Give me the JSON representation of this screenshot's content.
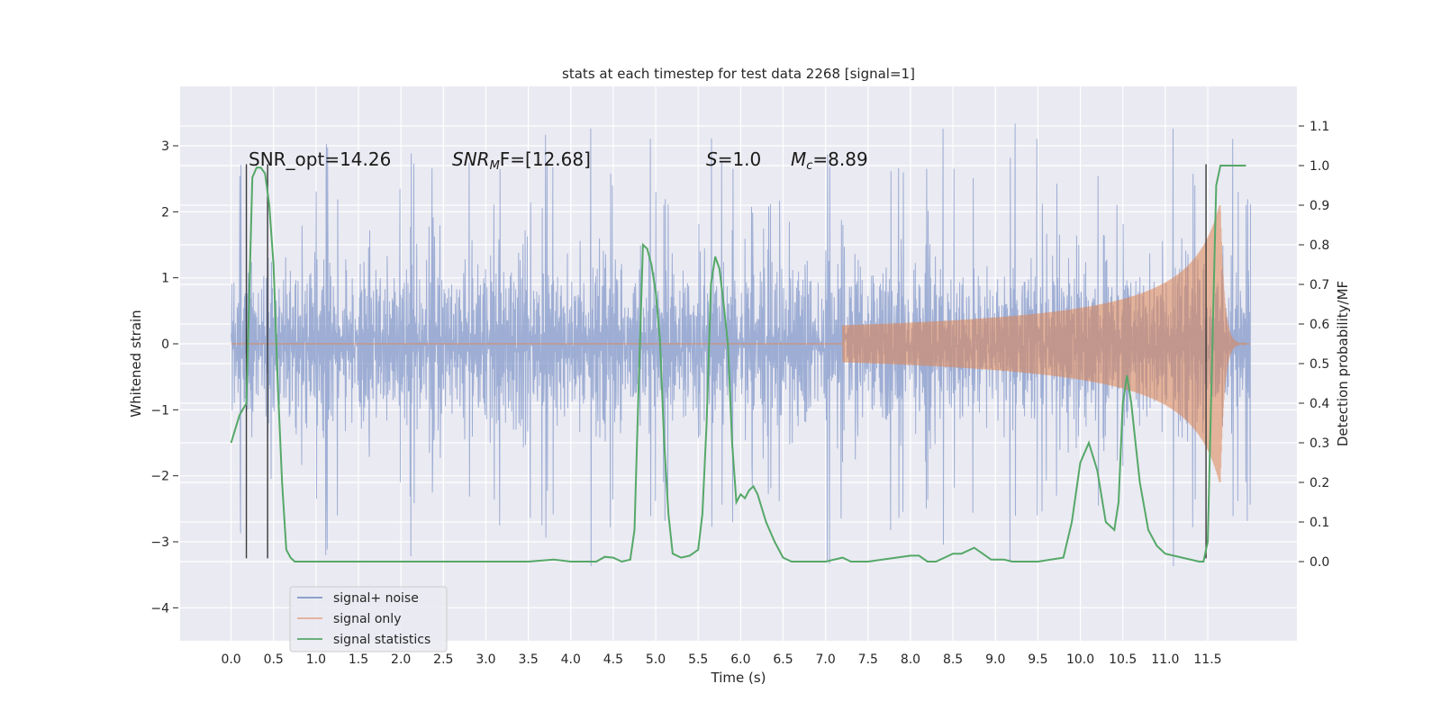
{
  "chart_data": {
    "type": "line",
    "title": "stats at each timestep for test data 2268 [signal=1]",
    "xlabel": "Time (s)",
    "ylabel": "Whitened strain",
    "y2label": "Detection probability/MF",
    "xlim": [
      -0.6,
      12.55
    ],
    "ylim": [
      -4.5,
      3.9
    ],
    "y2lim": [
      -0.2,
      1.2
    ],
    "xticks": [
      "0.0",
      "0.5",
      "1.0",
      "1.5",
      "2.0",
      "2.5",
      "3.0",
      "3.5",
      "4.0",
      "4.5",
      "5.0",
      "5.5",
      "6.0",
      "6.5",
      "7.0",
      "7.5",
      "8.0",
      "8.5",
      "9.0",
      "9.5",
      "10.0",
      "10.5",
      "11.0",
      "11.5"
    ],
    "yticks": [
      "3",
      "2",
      "1",
      "0",
      "−1",
      "−2",
      "−3",
      "−4"
    ],
    "y2ticks": [
      "1.1",
      "1.0",
      "0.9",
      "0.8",
      "0.7",
      "0.6",
      "0.5",
      "0.4",
      "0.3",
      "0.2",
      "0.1",
      "0.0"
    ],
    "grid": true,
    "legend_position": "lower-left",
    "annotations": {
      "snr_opt": "SNR_opt=14.26",
      "snr_mf_sym": "SNR",
      "snr_mf_sub": "M",
      "snr_mf_rest": "F=[12.68]",
      "s_sym": "S",
      "s_val": "=1.0",
      "mc_sym": "M",
      "mc_sub": "c",
      "mc_val": "=8.89"
    },
    "vlines_x": [
      0.18,
      0.43,
      11.48
    ],
    "series": [
      {
        "name": "signal+ noise",
        "color": "#7f96c7",
        "x_range": [
          0.0,
          12.0
        ],
        "envelope_typical": 1.5,
        "envelope_peak_max": 3.55,
        "envelope_peak_min": -4.1
      },
      {
        "name": "signal only",
        "color": "#dd8452",
        "chirp_start_s": 7.2,
        "merger_s": 11.65,
        "peak_amplitude": 2.1
      },
      {
        "name": "signal statistics",
        "color": "#55a868",
        "x": [
          0.0,
          0.1,
          0.18,
          0.25,
          0.3,
          0.35,
          0.4,
          0.45,
          0.5,
          0.55,
          0.6,
          0.65,
          0.7,
          0.75,
          0.8,
          1.5,
          2.5,
          3.5,
          3.8,
          4.0,
          4.3,
          4.4,
          4.5,
          4.6,
          4.7,
          4.75,
          4.8,
          4.85,
          4.9,
          4.95,
          5.0,
          5.05,
          5.1,
          5.15,
          5.2,
          5.3,
          5.4,
          5.5,
          5.55,
          5.6,
          5.65,
          5.7,
          5.75,
          5.8,
          5.85,
          5.9,
          5.95,
          6.0,
          6.05,
          6.1,
          6.15,
          6.2,
          6.3,
          6.4,
          6.5,
          6.6,
          6.7,
          7.0,
          7.2,
          7.3,
          7.5,
          8.0,
          8.1,
          8.2,
          8.3,
          8.5,
          8.6,
          8.75,
          8.85,
          8.95,
          9.1,
          9.2,
          9.5,
          9.8,
          9.9,
          10.0,
          10.1,
          10.2,
          10.3,
          10.4,
          10.45,
          10.5,
          10.55,
          10.6,
          10.65,
          10.7,
          10.8,
          10.9,
          11.0,
          11.2,
          11.4,
          11.45,
          11.5,
          11.55,
          11.6,
          11.65,
          11.7,
          11.8,
          11.95
        ],
        "y": [
          0.3,
          0.37,
          0.4,
          0.97,
          0.995,
          0.995,
          0.98,
          0.9,
          0.75,
          0.45,
          0.2,
          0.03,
          0.01,
          0.0,
          0.0,
          0.0,
          0.0,
          0.0,
          0.005,
          0.0,
          0.0,
          0.012,
          0.01,
          0.0,
          0.005,
          0.08,
          0.45,
          0.8,
          0.79,
          0.75,
          0.68,
          0.56,
          0.3,
          0.12,
          0.02,
          0.01,
          0.015,
          0.03,
          0.12,
          0.35,
          0.7,
          0.77,
          0.74,
          0.65,
          0.55,
          0.3,
          0.15,
          0.17,
          0.16,
          0.18,
          0.19,
          0.17,
          0.1,
          0.05,
          0.01,
          0.0,
          0.0,
          0.0,
          0.01,
          0.0,
          0.0,
          0.015,
          0.015,
          0.0,
          0.0,
          0.02,
          0.02,
          0.035,
          0.02,
          0.005,
          0.005,
          0.0,
          0.0,
          0.01,
          0.1,
          0.25,
          0.3,
          0.23,
          0.1,
          0.08,
          0.15,
          0.4,
          0.47,
          0.4,
          0.3,
          0.2,
          0.08,
          0.04,
          0.02,
          0.01,
          0.0,
          0.0,
          0.05,
          0.5,
          0.95,
          1.0,
          1.0,
          1.0,
          1.0
        ]
      }
    ]
  }
}
